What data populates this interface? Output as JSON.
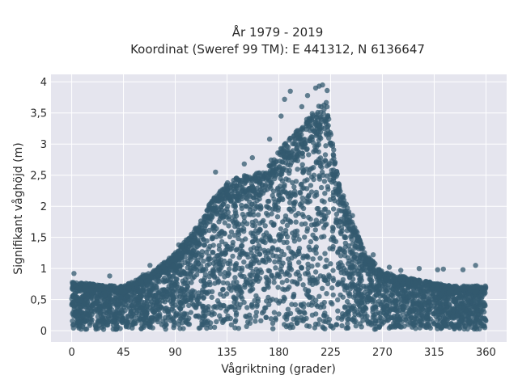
{
  "chart_data": {
    "type": "scatter",
    "title_line1": "År 1979 - 2019",
    "title_line2": "Koordinat (Sweref 99 TM): E 441312, N 6136647",
    "xlabel": "Vågriktning (grader)",
    "ylabel": "Signifikant våghöjd (m)",
    "xlim": [
      -18,
      378
    ],
    "ylim": [
      -0.18,
      4.12
    ],
    "x_ticks": [
      0,
      45,
      90,
      135,
      180,
      225,
      270,
      315,
      360
    ],
    "x_tick_labels": [
      "0",
      "45",
      "90",
      "135",
      "180",
      "225",
      "270",
      "315",
      "360"
    ],
    "y_ticks": [
      0,
      0.5,
      1,
      1.5,
      2,
      2.5,
      3,
      3.5,
      4
    ],
    "y_tick_labels": [
      "0",
      "0,5",
      "1",
      "1,5",
      "2",
      "2,5",
      "3",
      "3,5",
      "4"
    ],
    "grid": true,
    "marker_color": "#33596f",
    "plot_bg": "#e5e5ee",
    "envelope": [
      {
        "x": 0,
        "y": 0.78
      },
      {
        "x": 20,
        "y": 0.75
      },
      {
        "x": 45,
        "y": 0.72
      },
      {
        "x": 70,
        "y": 0.95
      },
      {
        "x": 90,
        "y": 1.25
      },
      {
        "x": 110,
        "y": 1.7
      },
      {
        "x": 120,
        "y": 2.05
      },
      {
        "x": 135,
        "y": 2.4
      },
      {
        "x": 150,
        "y": 2.5
      },
      {
        "x": 165,
        "y": 2.55
      },
      {
        "x": 180,
        "y": 2.9
      },
      {
        "x": 195,
        "y": 3.2
      },
      {
        "x": 210,
        "y": 3.55
      },
      {
        "x": 222,
        "y": 3.7
      },
      {
        "x": 230,
        "y": 2.6
      },
      {
        "x": 240,
        "y": 1.95
      },
      {
        "x": 255,
        "y": 1.25
      },
      {
        "x": 270,
        "y": 0.95
      },
      {
        "x": 300,
        "y": 0.82
      },
      {
        "x": 330,
        "y": 0.72
      },
      {
        "x": 360,
        "y": 0.72
      }
    ],
    "outliers": [
      {
        "x": 2,
        "y": 0.92
      },
      {
        "x": 33,
        "y": 0.88
      },
      {
        "x": 62,
        "y": 0.9
      },
      {
        "x": 68,
        "y": 1.05
      },
      {
        "x": 93,
        "y": 1.38
      },
      {
        "x": 125,
        "y": 2.55
      },
      {
        "x": 150,
        "y": 2.68
      },
      {
        "x": 157,
        "y": 2.78
      },
      {
        "x": 172,
        "y": 3.08
      },
      {
        "x": 182,
        "y": 3.45
      },
      {
        "x": 185,
        "y": 3.72
      },
      {
        "x": 190,
        "y": 3.85
      },
      {
        "x": 200,
        "y": 3.6
      },
      {
        "x": 205,
        "y": 3.78
      },
      {
        "x": 212,
        "y": 3.9
      },
      {
        "x": 215,
        "y": 3.93
      },
      {
        "x": 218,
        "y": 3.95
      },
      {
        "x": 222,
        "y": 3.86
      },
      {
        "x": 244,
        "y": 1.85
      },
      {
        "x": 248,
        "y": 1.58
      },
      {
        "x": 262,
        "y": 1.22
      },
      {
        "x": 276,
        "y": 1.02
      },
      {
        "x": 286,
        "y": 0.97
      },
      {
        "x": 302,
        "y": 1.0
      },
      {
        "x": 318,
        "y": 0.98
      },
      {
        "x": 323,
        "y": 0.99
      },
      {
        "x": 340,
        "y": 0.98
      },
      {
        "x": 351,
        "y": 1.05
      },
      {
        "x": 356,
        "y": 0.68
      },
      {
        "x": 359,
        "y": 0.05
      }
    ]
  }
}
